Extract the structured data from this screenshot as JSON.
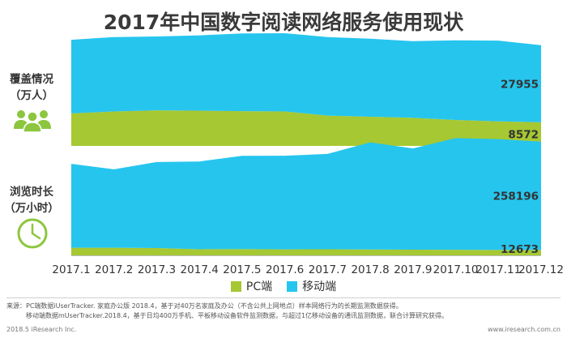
{
  "title": "2017年中国数字阅读网络服务使用现状",
  "panels": [
    {
      "label_line1": "覆盖情况",
      "label_line2": "（万人）",
      "icon": "users-icon"
    },
    {
      "label_line1": "浏览时长",
      "label_line2": "（万小时）",
      "icon": "clock-icon"
    }
  ],
  "legend": [
    {
      "label": "PC端",
      "color": "#a6c832"
    },
    {
      "label": "移动端",
      "color": "#26c5ee"
    }
  ],
  "chart_data": [
    {
      "type": "area",
      "stacked": true,
      "title": "覆盖情况",
      "x": [
        "2017.1",
        "2017.2",
        "2017.3",
        "2017.4",
        "2017.5",
        "2017.6",
        "2017.7",
        "2017.8",
        "2017.9",
        "2017.10",
        "2017.11",
        "2017.12"
      ],
      "series": [
        {
          "name": "PC端",
          "values": [
            11800,
            12500,
            12900,
            12800,
            12600,
            12500,
            11000,
            10600,
            10200,
            9400,
            8900,
            8572
          ]
        },
        {
          "name": "移动端",
          "values": [
            26700,
            27000,
            26800,
            27300,
            28200,
            28400,
            28500,
            28300,
            27800,
            28900,
            29300,
            27955
          ]
        }
      ],
      "data_labels": {
        "PC端": "8572",
        "移动端": "27955"
      },
      "ylim": [
        0,
        40000
      ]
    },
    {
      "type": "area",
      "stacked": true,
      "title": "浏览时长",
      "x": [
        "2017.1",
        "2017.2",
        "2017.3",
        "2017.4",
        "2017.5",
        "2017.6",
        "2017.7",
        "2017.8",
        "2017.9",
        "2017.10",
        "2017.11",
        "2017.12"
      ],
      "series": [
        {
          "name": "PC端",
          "values": [
            18000,
            18000,
            17300,
            14600,
            15000,
            14300,
            14600,
            14100,
            13600,
            13300,
            12900,
            12673
          ]
        },
        {
          "name": "移动端",
          "values": [
            200000,
            187000,
            205000,
            209000,
            222000,
            223000,
            227000,
            255000,
            241000,
            266000,
            264000,
            258196
          ]
        }
      ],
      "data_labels": {
        "PC端": "12673",
        "移动端": "258196"
      },
      "ylim": [
        0,
        280000
      ]
    }
  ],
  "source_line1": "来源：PC端数据iUserTracker. 家庭办公版 2018.4，基于对40万名家庭及办公（不含公共上网地点）样本网络行为的长期监测数据获得。",
  "source_line2": "　　　移动端数据mUserTracker.2018.4，基于日均400万手机、平板移动设备软件监测数据，与超过1亿移动设备的通讯监测数据，联合计算研究获得。",
  "footer_left": "2018.5 iResearch Inc.",
  "footer_right": "www.iresearch.com.cn"
}
